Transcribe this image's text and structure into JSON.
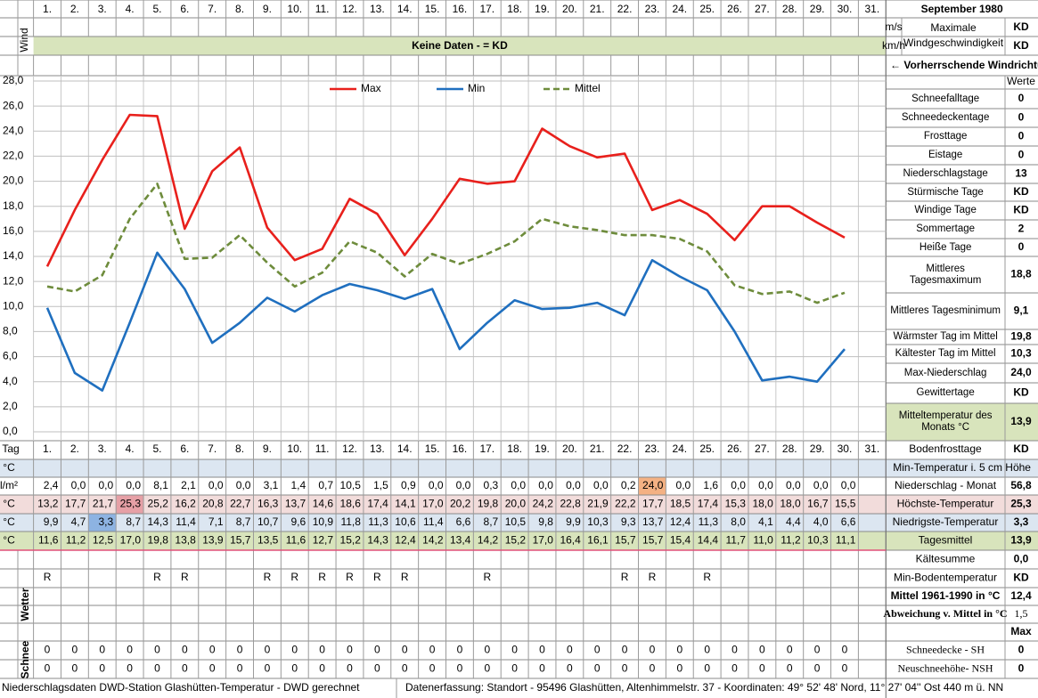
{
  "header": {
    "title": "September 1980",
    "wind_label": "Wind",
    "no_data": "Keine Daten -  = KD",
    "unit_ms": "m/s",
    "unit_kmh": "km/h",
    "max_wind_line1": "Maximale",
    "max_wind_line2": "Windgeschwindigkeit",
    "max_wind_ms": "KD",
    "max_wind_kmh": "KD",
    "wind_direction": "← Vorherrschende Windrichtung",
    "values_header": "Werte"
  },
  "chart_data": {
    "type": "line",
    "categories": [
      "1.",
      "2.",
      "3.",
      "4.",
      "5.",
      "6.",
      "7.",
      "8.",
      "9.",
      "10.",
      "11.",
      "12.",
      "13.",
      "14.",
      "15.",
      "16.",
      "17.",
      "18.",
      "19.",
      "20.",
      "21.",
      "22.",
      "23.",
      "24.",
      "25.",
      "26.",
      "27.",
      "28.",
      "29.",
      "30.",
      "31."
    ],
    "ylim": [
      0,
      28
    ],
    "yticks": [
      {
        "value": 0,
        "label": "0,0"
      },
      {
        "value": 2,
        "label": "2,0"
      },
      {
        "value": 4,
        "label": "4,0"
      },
      {
        "value": 6,
        "label": "6,0"
      },
      {
        "value": 8,
        "label": "8,0"
      },
      {
        "value": 10,
        "label": "10,0"
      },
      {
        "value": 12,
        "label": "12,0"
      },
      {
        "value": 14,
        "label": "14,0"
      },
      {
        "value": 16,
        "label": "16,0"
      },
      {
        "value": 18,
        "label": "18,0"
      },
      {
        "value": 20,
        "label": "20,0"
      },
      {
        "value": 22,
        "label": "22,0"
      },
      {
        "value": 24,
        "label": "24,0"
      },
      {
        "value": 26,
        "label": "26,0"
      },
      {
        "value": 28,
        "label": "28,0"
      }
    ],
    "grid": true,
    "legend": "top",
    "series": [
      {
        "name": "Max",
        "color": "#e8201c",
        "dash": false,
        "values": [
          13.2,
          17.7,
          21.7,
          25.3,
          25.2,
          16.2,
          20.8,
          22.7,
          16.3,
          13.7,
          14.6,
          18.6,
          17.4,
          14.1,
          17.0,
          20.2,
          19.8,
          20.0,
          24.2,
          22.8,
          21.9,
          22.2,
          17.7,
          18.5,
          17.4,
          15.3,
          18.0,
          18.0,
          16.7,
          15.5,
          null
        ]
      },
      {
        "name": "Min",
        "color": "#1f6fbf",
        "dash": false,
        "values": [
          9.9,
          4.7,
          3.3,
          8.7,
          14.3,
          11.4,
          7.1,
          8.7,
          10.7,
          9.6,
          10.9,
          11.8,
          11.3,
          10.6,
          11.4,
          6.6,
          8.7,
          10.5,
          9.8,
          9.9,
          10.3,
          9.3,
          13.7,
          12.4,
          11.3,
          8.0,
          4.1,
          4.4,
          4.0,
          6.6,
          null
        ]
      },
      {
        "name": "Mittel",
        "color": "#6e8c3c",
        "dash": true,
        "values": [
          11.6,
          11.2,
          12.5,
          17.0,
          19.8,
          13.8,
          13.9,
          15.7,
          13.5,
          11.6,
          12.7,
          15.2,
          14.3,
          12.4,
          14.2,
          13.4,
          14.2,
          15.2,
          17.0,
          16.4,
          16.1,
          15.7,
          15.7,
          15.4,
          14.4,
          11.7,
          11.0,
          11.2,
          10.3,
          11.1,
          null
        ]
      }
    ]
  },
  "stats": [
    {
      "label": "Schneefalltage",
      "value": "0"
    },
    {
      "label": "Schneedeckentage",
      "value": "0"
    },
    {
      "label": "Frosttage",
      "value": "0"
    },
    {
      "label": "Eistage",
      "value": "0"
    },
    {
      "label": "Niederschlagstage",
      "value": "13"
    },
    {
      "label": "Stürmische Tage",
      "value": "KD"
    },
    {
      "label": "Windige Tage",
      "value": "KD"
    },
    {
      "label": "Sommertage",
      "value": "2"
    },
    {
      "label": "Heiße Tage",
      "value": "0"
    },
    {
      "label": "Mittleres Tagesmaximum",
      "value": "18,8"
    },
    {
      "label": "Mittleres Tagesminimum",
      "value": "9,1"
    },
    {
      "label": "Wärmster Tag im Mittel",
      "value": "19,8"
    },
    {
      "label": "Kältester Tag im Mittel",
      "value": "10,3"
    },
    {
      "label": "Max-Niederschlag",
      "value": "24,0"
    },
    {
      "label": "Gewittertage",
      "value": "KD"
    },
    {
      "label": "Mitteltemperatur des Monats °C",
      "value": "13,9",
      "background": "#d8e4bc"
    }
  ],
  "table": {
    "day_label": "Tag",
    "day_total_label": "Bodenfrosttage",
    "day_total": "KD",
    "rows": [
      {
        "unit": "°C",
        "label": "Min-Temperatur i. 5 cm Höhe",
        "background": "#dce6f1"
      },
      {
        "unit": "l/m²",
        "label": "Niederschlag - Monat",
        "total": "56,8",
        "highlight": "max",
        "highlight_color": "#f4b183",
        "values": [
          "2,4",
          "0,0",
          "0,0",
          "0,0",
          "8,1",
          "2,1",
          "0,0",
          "0,0",
          "3,1",
          "1,4",
          "0,7",
          "10,5",
          "1,5",
          "0,9",
          "0,0",
          "0,0",
          "0,3",
          "0,0",
          "0,0",
          "0,0",
          "0,0",
          "0,2",
          "24,0",
          "0,0",
          "1,6",
          "0,0",
          "0,0",
          "0,0",
          "0,0",
          "0,0"
        ]
      },
      {
        "unit": "°C",
        "label": "Höchste-Temperatur",
        "total": "25,3",
        "background": "#f2dcdb",
        "highlight": "max",
        "highlight_color": "#e6a0a6",
        "values": [
          "13,2",
          "17,7",
          "21,7",
          "25,3",
          "25,2",
          "16,2",
          "20,8",
          "22,7",
          "16,3",
          "13,7",
          "14,6",
          "18,6",
          "17,4",
          "14,1",
          "17,0",
          "20,2",
          "19,8",
          "20,0",
          "24,2",
          "22,8",
          "21,9",
          "22,2",
          "17,7",
          "18,5",
          "17,4",
          "15,3",
          "18,0",
          "18,0",
          "16,7",
          "15,5"
        ]
      },
      {
        "unit": "°C",
        "label": "Niedrigste-Temperatur",
        "total": "3,3",
        "background": "#dce6f1",
        "highlight": "min",
        "highlight_color": "#8db3e2",
        "values": [
          "9,9",
          "4,7",
          "3,3",
          "8,7",
          "14,3",
          "11,4",
          "7,1",
          "8,7",
          "10,7",
          "9,6",
          "10,9",
          "11,8",
          "11,3",
          "10,6",
          "11,4",
          "6,6",
          "8,7",
          "10,5",
          "9,8",
          "9,9",
          "10,3",
          "9,3",
          "13,7",
          "12,4",
          "11,3",
          "8,0",
          "4,1",
          "4,4",
          "4,0",
          "6,6"
        ]
      },
      {
        "unit": "°C",
        "label": "Tagesmittel",
        "total": "13,9",
        "background": "#d8e4bc",
        "values": [
          "11,6",
          "11,2",
          "12,5",
          "17,0",
          "19,8",
          "13,8",
          "13,9",
          "15,7",
          "13,5",
          "11,6",
          "12,7",
          "15,2",
          "14,3",
          "12,4",
          "14,2",
          "13,4",
          "14,2",
          "15,2",
          "17,0",
          "16,4",
          "16,1",
          "15,7",
          "15,7",
          "15,4",
          "14,4",
          "11,7",
          "11,0",
          "11,2",
          "10,3",
          "11,1"
        ]
      }
    ]
  },
  "extra": [
    {
      "label": "Kältesumme",
      "value": "0,0"
    },
    {
      "label": "Min-Bodentemperatur",
      "value": "KD"
    },
    {
      "label": "Mittel 1961-1990 in °C",
      "value": "12,4"
    },
    {
      "label": "Abweichung v. Mittel in °C",
      "value": "1,5"
    },
    {
      "value": "Max"
    }
  ],
  "weather": {
    "label": "Wetter",
    "symbols": [
      "R",
      null,
      null,
      null,
      "R",
      "R",
      null,
      null,
      "R",
      "R",
      "R",
      "R",
      "R",
      "R",
      null,
      null,
      "R",
      null,
      null,
      null,
      null,
      "R",
      "R",
      null,
      "R",
      null,
      null,
      null,
      null,
      null
    ]
  },
  "snow": {
    "label": "Schnee",
    "rows": [
      {
        "label": "Schneedecke -  SH",
        "value": 0,
        "values": [
          0,
          0,
          0,
          0,
          0,
          0,
          0,
          0,
          0,
          0,
          0,
          0,
          0,
          0,
          0,
          0,
          0,
          0,
          0,
          0,
          0,
          0,
          0,
          0,
          0,
          0,
          0,
          0,
          0,
          0
        ]
      },
      {
        "label": "Neuschneehöhe- NSH",
        "value": 0,
        "values": [
          0,
          0,
          0,
          0,
          0,
          0,
          0,
          0,
          0,
          0,
          0,
          0,
          0,
          0,
          0,
          0,
          0,
          0,
          0,
          0,
          0,
          0,
          0,
          0,
          0,
          0,
          0,
          0,
          0,
          0
        ]
      }
    ]
  },
  "footer": {
    "left": "Niederschlagsdaten DWD-Station Glashütten-Temperatur -  DWD gerechnet",
    "right": "Datenerfassung: Standort -  95496 Glashütten, Altenhimmelstr. 37 - Koordinaten: 49° 52' 48' Nord,  11° 27' 04'' Ost  440 m ü. NN"
  }
}
